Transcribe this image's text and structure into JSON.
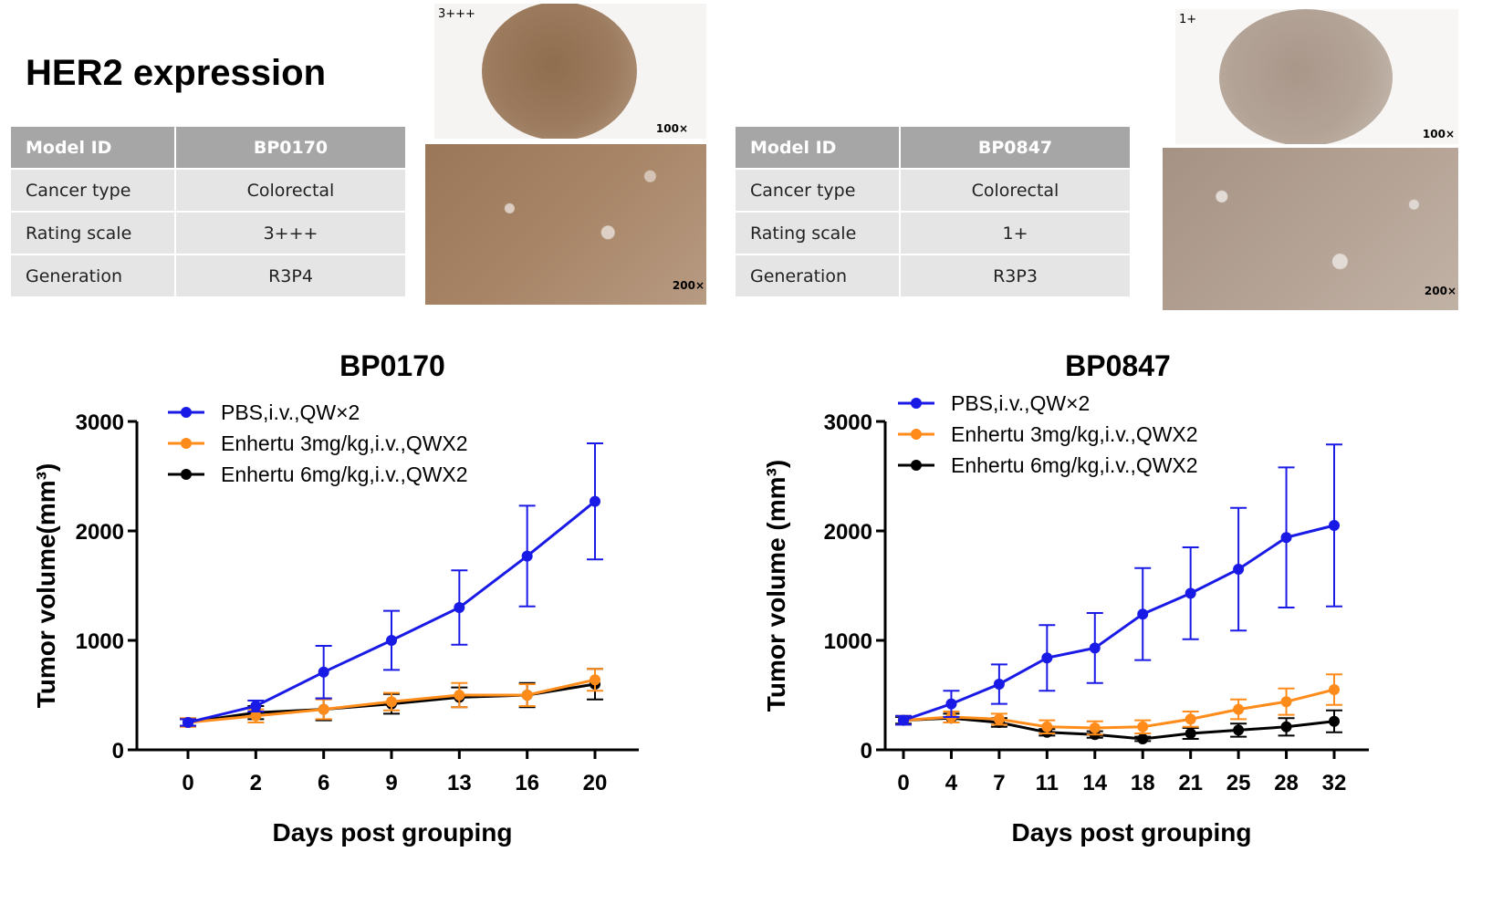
{
  "heading": "HER2 expression",
  "colors": {
    "pbs": "#1a1ae6",
    "enhertu3": "#ff8c1a",
    "enhertu6": "#000000",
    "table_header": "#a6a6a6",
    "table_cell": "#e5e5e5"
  },
  "models": [
    {
      "table": {
        "header_key": "Model ID",
        "header_value": "BP0170",
        "rows": [
          {
            "key": "Cancer type",
            "value": "Colorectal"
          },
          {
            "key": "Rating scale",
            "value": "3+++"
          },
          {
            "key": "Generation",
            "value": "R3P4"
          }
        ]
      },
      "ihc": {
        "score": "3+++",
        "mag_low": "100×",
        "mag_high": "200×"
      }
    },
    {
      "table": {
        "header_key": "Model ID",
        "header_value": "BP0847",
        "rows": [
          {
            "key": "Cancer type",
            "value": "Colorectal"
          },
          {
            "key": "Rating scale",
            "value": "1+"
          },
          {
            "key": "Generation",
            "value": "R3P3"
          }
        ]
      },
      "ihc": {
        "score": "1+",
        "mag_low": "100×",
        "mag_high": "200×"
      }
    }
  ],
  "chart_data": [
    {
      "type": "line",
      "title": "BP0170",
      "xlabel": "Days post grouping",
      "ylabel": "Tumor volume(mm³)",
      "x": [
        0,
        2,
        6,
        9,
        13,
        16,
        20
      ],
      "ylim": [
        0,
        3000
      ],
      "yticks": [
        0,
        1000,
        2000,
        3000
      ],
      "legend_position": "top-left",
      "series": [
        {
          "name": "PBS,i.v.,QW×2",
          "values": [
            250,
            400,
            710,
            1000,
            1300,
            1770,
            2270
          ],
          "error": [
            30,
            50,
            240,
            270,
            340,
            460,
            530
          ]
        },
        {
          "name": "Enhertu 3mg/kg,i.v.,QWX2",
          "values": [
            250,
            310,
            370,
            440,
            500,
            500,
            640
          ],
          "error": [
            40,
            60,
            90,
            80,
            110,
            100,
            100
          ]
        },
        {
          "name": "Enhertu 6mg/kg,i.v.,QWX2",
          "values": [
            250,
            340,
            370,
            420,
            480,
            500,
            600
          ],
          "error": [
            30,
            60,
            100,
            90,
            90,
            110,
            140
          ]
        }
      ]
    },
    {
      "type": "line",
      "title": "BP0847",
      "xlabel": "Days post grouping",
      "ylabel": "Tumor volume (mm³)",
      "x": [
        0,
        4,
        7,
        11,
        14,
        18,
        21,
        25,
        28,
        32
      ],
      "ylim": [
        0,
        3000
      ],
      "yticks": [
        0,
        1000,
        2000,
        3000
      ],
      "legend_position": "top-left",
      "series": [
        {
          "name": "PBS,i.v.,QW×2",
          "values": [
            270,
            420,
            600,
            840,
            930,
            1240,
            1430,
            1650,
            1940,
            2050
          ],
          "error": [
            40,
            120,
            180,
            300,
            320,
            420,
            420,
            560,
            640,
            740
          ]
        },
        {
          "name": "Enhertu 3mg/kg,i.v.,QWX2",
          "values": [
            270,
            300,
            280,
            210,
            200,
            210,
            280,
            370,
            440,
            550
          ],
          "error": [
            40,
            50,
            50,
            60,
            60,
            60,
            70,
            90,
            120,
            140
          ]
        },
        {
          "name": "Enhertu 6mg/kg,i.v.,QWX2",
          "values": [
            270,
            290,
            250,
            160,
            140,
            100,
            150,
            180,
            210,
            260
          ],
          "error": [
            30,
            40,
            40,
            30,
            30,
            20,
            50,
            60,
            80,
            100
          ]
        }
      ]
    }
  ]
}
